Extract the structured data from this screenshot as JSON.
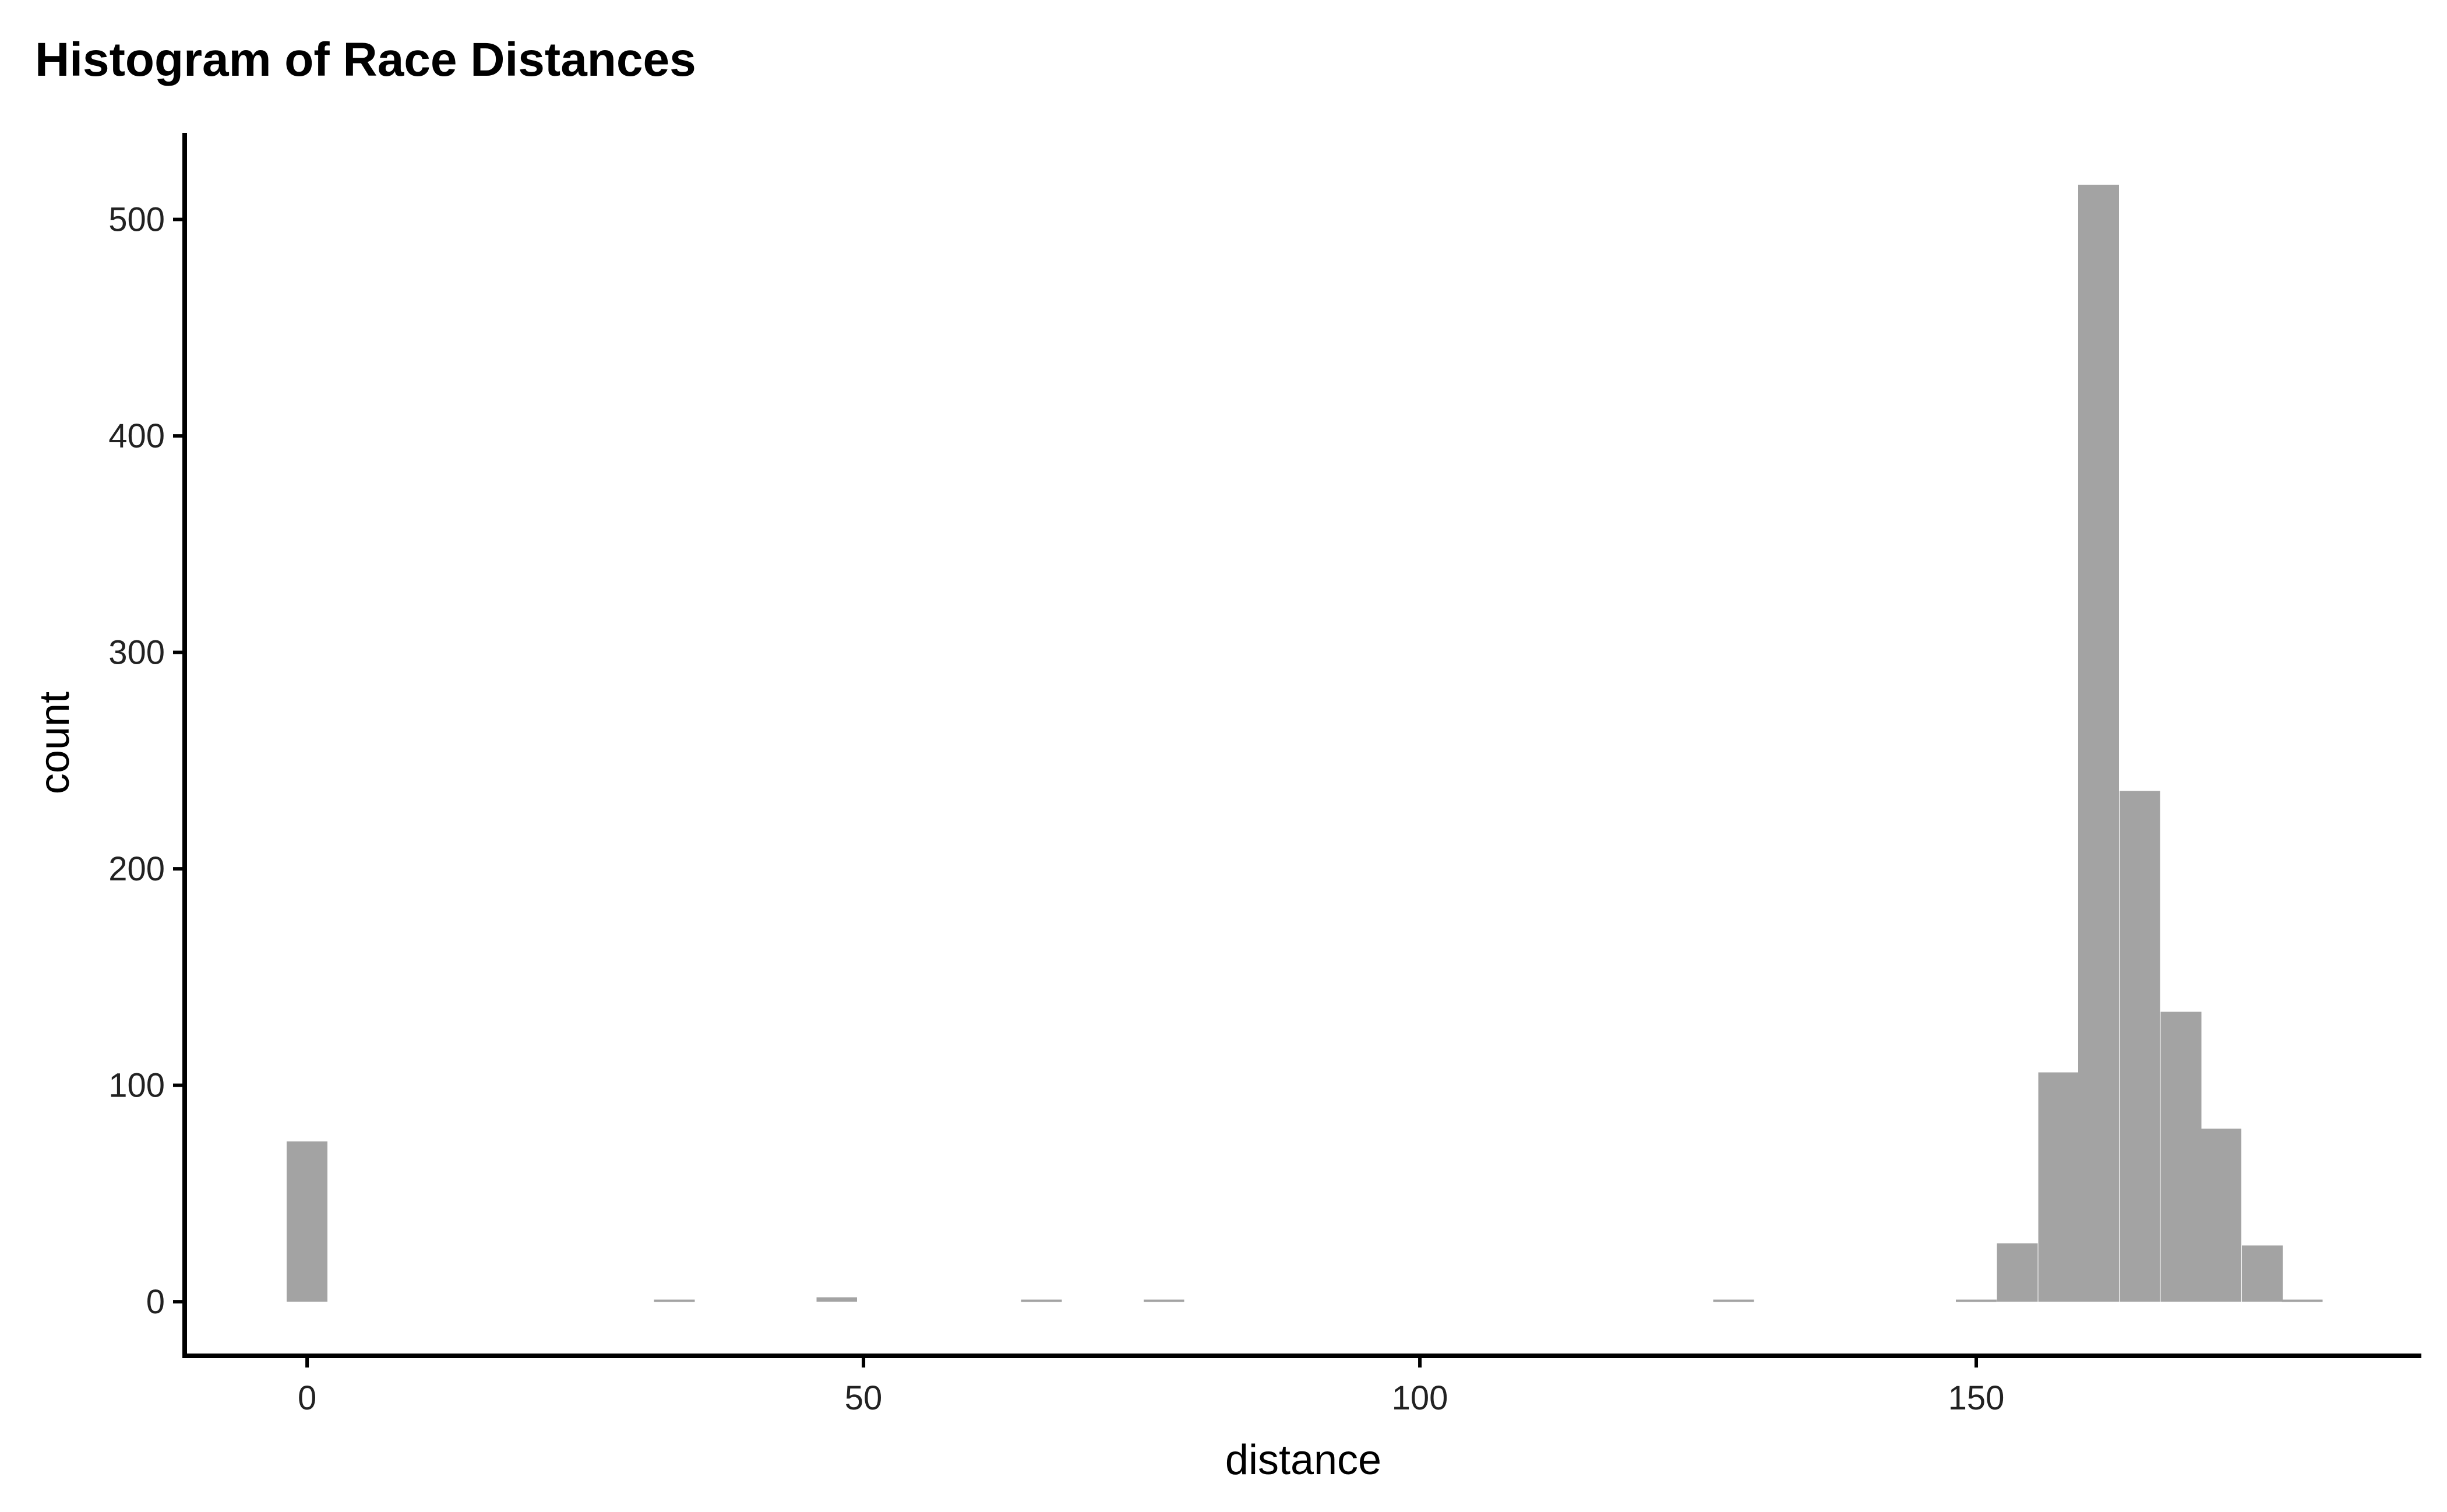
{
  "chart_data": {
    "type": "bar",
    "subtype": "histogram",
    "title": "Histogram of Race Distances",
    "xlabel": "distance",
    "ylabel": "count",
    "xlim": [
      -11,
      190
    ],
    "ylim": [
      -25,
      540
    ],
    "x_ticks": [
      0,
      50,
      100,
      150
    ],
    "y_ticks": [
      0,
      100,
      200,
      300,
      400,
      500
    ],
    "bin_width": 3.66,
    "bar_color": "#a3a3a3",
    "grid": false,
    "legend": "none",
    "bins": [
      {
        "x": 0,
        "count": 74
      },
      {
        "x": 33,
        "count": 1
      },
      {
        "x": 47.6,
        "count": 2
      },
      {
        "x": 66,
        "count": 1
      },
      {
        "x": 77,
        "count": 1
      },
      {
        "x": 128.2,
        "count": 1
      },
      {
        "x": 150,
        "count": 1
      },
      {
        "x": 153.7,
        "count": 27
      },
      {
        "x": 157.4,
        "count": 106
      },
      {
        "x": 161,
        "count": 516
      },
      {
        "x": 164.7,
        "count": 236
      },
      {
        "x": 168.4,
        "count": 134
      },
      {
        "x": 172,
        "count": 80
      },
      {
        "x": 175.7,
        "count": 26
      },
      {
        "x": 179.3,
        "count": 1
      }
    ]
  }
}
